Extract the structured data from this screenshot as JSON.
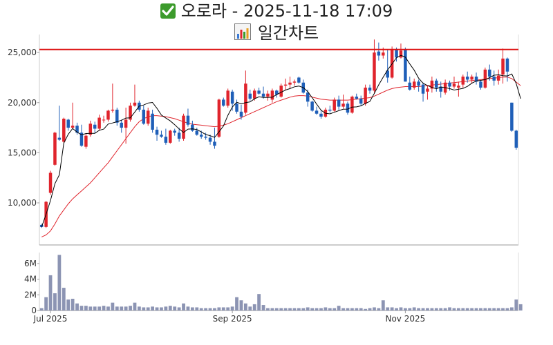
{
  "title": {
    "main": "오로라 - 2025-11-18 17:09",
    "sub": "일간차트",
    "icon_main": "check-icon",
    "icon_sub": "chart-icon"
  },
  "colors": {
    "up": "#e0242c",
    "down": "#1f5fb8",
    "ma_short": "#000000",
    "ma_long": "#e0242c",
    "resistance": "#dd1111",
    "volume": "#8c94b3"
  },
  "chart_data": [
    {
      "type": "candlestick",
      "title": "",
      "ylim": [
        5800,
        26800
      ],
      "yticks": [
        10000,
        15000,
        20000,
        25000
      ],
      "ytick_labels": [
        "10,000",
        "15,000",
        "20,000",
        "25,000"
      ],
      "xtick_labels": [
        "Jul 2025",
        "Sep 2025",
        "Nov 2025"
      ],
      "xtick_index": [
        2,
        43,
        82
      ],
      "resistance": 25300,
      "grid": false,
      "ohlc": [
        [
          7800,
          7900,
          7500,
          7600
        ],
        [
          7600,
          10200,
          7500,
          10100
        ],
        [
          11000,
          13200,
          10800,
          13000
        ],
        [
          13800,
          17100,
          13700,
          17000
        ],
        [
          16500,
          19700,
          16200,
          16300
        ],
        [
          16100,
          18500,
          16000,
          18400
        ],
        [
          18300,
          18400,
          17200,
          17500
        ],
        [
          17500,
          20000,
          17400,
          17700
        ],
        [
          17700,
          18000,
          16800,
          17000
        ],
        [
          17000,
          17800,
          15600,
          15700
        ],
        [
          15600,
          16900,
          15400,
          16700
        ],
        [
          16800,
          18200,
          16600,
          17900
        ],
        [
          17800,
          18100,
          17000,
          17400
        ],
        [
          17400,
          18800,
          17200,
          18500
        ],
        [
          18300,
          18700,
          18000,
          18300
        ],
        [
          18300,
          19300,
          18100,
          19200
        ],
        [
          19200,
          21900,
          19000,
          19300
        ],
        [
          19300,
          19500,
          17700,
          18000
        ],
        [
          18000,
          18300,
          17000,
          17500
        ],
        [
          17500,
          19500,
          15900,
          18300
        ],
        [
          18300,
          20000,
          18100,
          19700
        ],
        [
          19700,
          21800,
          19600,
          20000
        ],
        [
          20000,
          20200,
          19100,
          19300
        ],
        [
          19300,
          19700,
          17800,
          17900
        ],
        [
          17900,
          19500,
          17700,
          19200
        ],
        [
          18900,
          19300,
          17000,
          17300
        ],
        [
          17300,
          17600,
          16200,
          16800
        ],
        [
          16800,
          17200,
          16500,
          16600
        ],
        [
          16600,
          17400,
          15800,
          16000
        ],
        [
          16000,
          17300,
          15900,
          17200
        ],
        [
          17200,
          17400,
          16700,
          17000
        ],
        [
          17000,
          17500,
          16100,
          16400
        ],
        [
          16400,
          18900,
          16200,
          18700
        ],
        [
          18700,
          19400,
          17600,
          17800
        ],
        [
          17800,
          18200,
          17100,
          17200
        ],
        [
          17200,
          17500,
          16700,
          16800
        ],
        [
          16800,
          17200,
          16400,
          16600
        ],
        [
          16600,
          17000,
          16300,
          16500
        ],
        [
          16500,
          16800,
          15800,
          16100
        ],
        [
          16100,
          17500,
          15400,
          15700
        ],
        [
          16600,
          20400,
          16500,
          20300
        ],
        [
          20300,
          20500,
          19600,
          19700
        ],
        [
          19700,
          21400,
          19500,
          21200
        ],
        [
          21100,
          21300,
          19200,
          19900
        ],
        [
          19900,
          20300,
          18900,
          19100
        ],
        [
          19100,
          19800,
          18300,
          18600
        ],
        [
          19000,
          23200,
          18800,
          21900
        ],
        [
          20900,
          21300,
          20200,
          20400
        ],
        [
          20400,
          21400,
          20200,
          21200
        ],
        [
          21200,
          21500,
          20800,
          20900
        ],
        [
          20900,
          21600,
          20400,
          20600
        ],
        [
          20600,
          21200,
          20200,
          20900
        ],
        [
          20300,
          21400,
          20000,
          21200
        ],
        [
          21200,
          21300,
          20500,
          20800
        ],
        [
          20600,
          21900,
          20500,
          21700
        ],
        [
          21700,
          22400,
          21300,
          21800
        ],
        [
          21800,
          22600,
          21400,
          22000
        ],
        [
          22000,
          22300,
          21700,
          22100
        ],
        [
          22500,
          22600,
          21900,
          22000
        ],
        [
          22000,
          22300,
          20900,
          21000
        ],
        [
          21000,
          21300,
          19600,
          20100
        ],
        [
          20100,
          20200,
          19100,
          19200
        ],
        [
          19200,
          19600,
          18800,
          18900
        ],
        [
          18900,
          19200,
          18400,
          18600
        ],
        [
          18600,
          19500,
          18500,
          19300
        ],
        [
          19300,
          19700,
          19000,
          19200
        ],
        [
          19200,
          20500,
          19100,
          20300
        ],
        [
          20300,
          20700,
          19300,
          19600
        ],
        [
          19600,
          20800,
          19400,
          19900
        ],
        [
          19900,
          20100,
          18800,
          19000
        ],
        [
          19000,
          20700,
          18900,
          20600
        ],
        [
          20600,
          20900,
          20300,
          20400
        ],
        [
          20400,
          20700,
          19700,
          19900
        ],
        [
          19900,
          21800,
          19700,
          21500
        ],
        [
          21500,
          21800,
          20900,
          21200
        ],
        [
          21200,
          26300,
          21000,
          25000
        ],
        [
          25100,
          26000,
          24200,
          24700
        ],
        [
          24700,
          25500,
          24400,
          25000
        ],
        [
          23200,
          25300,
          22000,
          22500
        ],
        [
          22500,
          25600,
          22400,
          25300
        ],
        [
          25300,
          25500,
          24100,
          24500
        ],
        [
          24500,
          25900,
          24400,
          25200
        ],
        [
          25300,
          25500,
          22100,
          22100
        ],
        [
          22000,
          22600,
          21200,
          21300
        ],
        [
          21500,
          22400,
          21300,
          22100
        ],
        [
          22100,
          22300,
          21100,
          21700
        ],
        [
          21800,
          22000,
          20100,
          20900
        ],
        [
          21100,
          21700,
          20300,
          21400
        ],
        [
          21400,
          22600,
          21000,
          22200
        ],
        [
          22200,
          22400,
          21100,
          21500
        ],
        [
          21600,
          22100,
          20500,
          21100
        ],
        [
          21000,
          22300,
          20800,
          22000
        ],
        [
          22000,
          22200,
          21200,
          21600
        ],
        [
          21600,
          22600,
          21400,
          21900
        ],
        [
          21500,
          22100,
          20600,
          21700
        ],
        [
          21800,
          22800,
          21500,
          22600
        ],
        [
          22600,
          23100,
          22000,
          22300
        ],
        [
          22300,
          22800,
          21900,
          22600
        ],
        [
          22600,
          23000,
          21800,
          22100
        ],
        [
          22100,
          22200,
          21300,
          21500
        ],
        [
          21500,
          23500,
          21400,
          23300
        ],
        [
          23300,
          23800,
          22200,
          22600
        ],
        [
          22600,
          23200,
          21700,
          22200
        ],
        [
          22200,
          23300,
          21800,
          22700
        ],
        [
          22800,
          25400,
          21900,
          24400
        ],
        [
          24400,
          24500,
          22100,
          23100
        ],
        [
          20000,
          20000,
          17100,
          17200
        ],
        [
          17200,
          17300,
          15300,
          15500
        ]
      ],
      "ma_short": [
        7600,
        8850,
        10233,
        11925,
        12800,
        15960,
        16840,
        17420,
        17060,
        16780,
        16920,
        16940,
        16940,
        17240,
        17360,
        17860,
        17970,
        18100,
        18240,
        18460,
        18480,
        19060,
        19660,
        19760,
        19960,
        20020,
        19440,
        18760,
        18460,
        18180,
        17800,
        17380,
        17020,
        17360,
        17380,
        17320,
        17080,
        16820,
        16700,
        16540,
        17100,
        17680,
        18740,
        19560,
        20040,
        19880,
        20000,
        20080,
        20380,
        20580,
        20520,
        20520,
        20540,
        20800,
        21040,
        21260,
        21400,
        21580,
        21660,
        21500,
        21100,
        20500,
        19860,
        19240,
        18940,
        18880,
        19040,
        19200,
        19340,
        19360,
        19560,
        19580,
        19680,
        19920,
        20120,
        20920,
        21780,
        22540,
        23260,
        23860,
        24480,
        24720,
        24540,
        23860,
        23240,
        22440,
        21940,
        21700,
        21520,
        21380,
        21560,
        21500,
        21400,
        21260,
        21340,
        21420,
        21620,
        21940,
        22160,
        22220,
        22300,
        22500,
        22740,
        22780,
        22680,
        22660,
        22860,
        21900,
        20400
      ],
      "ma_long": [
        6600,
        6800,
        7200,
        7900,
        8700,
        9300,
        9900,
        10400,
        10800,
        11200,
        11600,
        12000,
        12500,
        13000,
        13500,
        14000,
        14600,
        15200,
        15800,
        16400,
        17000,
        17600,
        18100,
        18400,
        18600,
        18700,
        18700,
        18650,
        18600,
        18500,
        18400,
        18250,
        18100,
        17950,
        17850,
        17800,
        17750,
        17700,
        17650,
        17600,
        17650,
        17750,
        17900,
        18100,
        18300,
        18500,
        18700,
        18900,
        19100,
        19300,
        19500,
        19700,
        19900,
        20100,
        20250,
        20400,
        20550,
        20650,
        20700,
        20700,
        20650,
        20550,
        20450,
        20350,
        20300,
        20250,
        20250,
        20250,
        20250,
        20250,
        20300,
        20350,
        20400,
        20450,
        20500,
        20650,
        20850,
        21050,
        21250,
        21400,
        21500,
        21550,
        21600,
        21600,
        21600,
        21600,
        21650,
        21700,
        21750,
        21800,
        21850,
        21900,
        21950,
        22000,
        22050,
        22100,
        22150,
        22200,
        22250,
        22300,
        22350,
        22400,
        22450,
        22500,
        22550,
        22550,
        22400,
        22050,
        21700
      ]
    },
    {
      "type": "bar",
      "title": "",
      "series_name": "volume",
      "ylim": [
        0,
        7400000
      ],
      "yticks": [
        0,
        2000000,
        4000000,
        6000000
      ],
      "ytick_labels": [
        "0",
        "2M",
        "4M",
        "6M"
      ],
      "values": [
        300000,
        1700000,
        4500000,
        2200000,
        7100000,
        2900000,
        1400000,
        1500000,
        900000,
        600000,
        600000,
        500000,
        500000,
        500000,
        600000,
        500000,
        1000000,
        500000,
        500000,
        500000,
        600000,
        1000000,
        500000,
        400000,
        400000,
        500000,
        400000,
        400000,
        500000,
        600000,
        500000,
        400000,
        900000,
        500000,
        400000,
        400000,
        300000,
        300000,
        300000,
        300000,
        400000,
        400000,
        400000,
        500000,
        1700000,
        1300000,
        900000,
        500000,
        800000,
        2100000,
        700000,
        300000,
        300000,
        300000,
        300000,
        300000,
        300000,
        300000,
        300000,
        300000,
        400000,
        300000,
        300000,
        300000,
        400000,
        300000,
        300000,
        600000,
        300000,
        300000,
        300000,
        300000,
        300000,
        200000,
        300000,
        400000,
        300000,
        1300000,
        400000,
        400000,
        300000,
        400000,
        300000,
        300000,
        400000,
        300000,
        300000,
        300000,
        300000,
        300000,
        300000,
        300000,
        400000,
        300000,
        300000,
        300000,
        300000,
        300000,
        300000,
        300000,
        300000,
        300000,
        300000,
        300000,
        300000,
        300000,
        400000,
        1400000,
        800000
      ]
    }
  ]
}
